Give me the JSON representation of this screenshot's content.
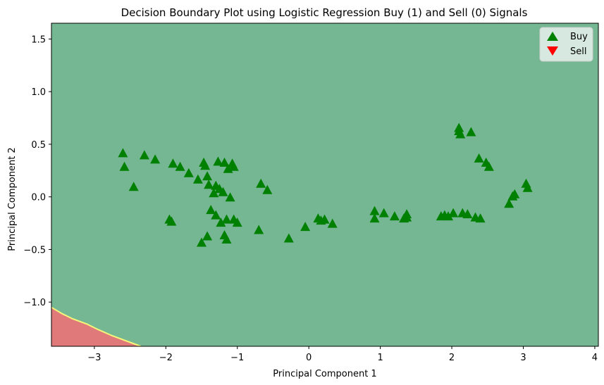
{
  "chart_data": {
    "type": "scatter",
    "title": "Decision Boundary Plot using Logistic Regression Buy (1) and Sell (0) Signals",
    "xlabel": "Principal Component 1",
    "ylabel": "Principal Component 2",
    "xlim": [
      -3.6,
      4.05
    ],
    "ylim": [
      -1.42,
      1.65
    ],
    "xticks": [
      -3,
      -2,
      -1,
      0,
      1,
      2,
      3,
      4
    ],
    "xtick_labels": [
      "−3",
      "−2",
      "−1",
      "0",
      "1",
      "2",
      "3",
      "4"
    ],
    "yticks": [
      -1.0,
      -0.5,
      0.0,
      0.5,
      1.0,
      1.5
    ],
    "ytick_labels": [
      "−1.0",
      "−0.5",
      "0.0",
      "0.5",
      "1.0",
      "1.5"
    ],
    "grid": false,
    "legend_position": "top-right",
    "region_colors": {
      "buy": "#74b792",
      "sell": "#e07a7a",
      "boundary": "#f5f57a"
    },
    "sell_region_boundary": [
      [
        -3.6,
        -1.05
      ],
      [
        -3.45,
        -1.11
      ],
      [
        -3.3,
        -1.16
      ],
      [
        -3.1,
        -1.21
      ],
      [
        -2.95,
        -1.26
      ],
      [
        -2.75,
        -1.32
      ],
      [
        -2.55,
        -1.37
      ],
      [
        -2.35,
        -1.42
      ]
    ],
    "series": [
      {
        "name": "Buy",
        "marker": "triangle-up",
        "color": "#008000",
        "points": [
          [
            -2.6,
            0.41
          ],
          [
            -2.58,
            0.28
          ],
          [
            -2.45,
            0.09
          ],
          [
            -2.3,
            0.39
          ],
          [
            -2.15,
            0.35
          ],
          [
            -1.95,
            -0.22
          ],
          [
            -1.92,
            -0.24
          ],
          [
            -1.9,
            0.31
          ],
          [
            -1.8,
            0.28
          ],
          [
            -1.68,
            0.22
          ],
          [
            -1.55,
            0.16
          ],
          [
            -1.47,
            0.32
          ],
          [
            -1.45,
            0.29
          ],
          [
            -1.42,
            0.19
          ],
          [
            -1.4,
            0.11
          ],
          [
            -1.37,
            -0.13
          ],
          [
            -1.33,
            0.03
          ],
          [
            -1.3,
            0.1
          ],
          [
            -1.3,
            -0.18
          ],
          [
            -1.27,
            0.33
          ],
          [
            -1.25,
            0.07
          ],
          [
            -1.23,
            -0.25
          ],
          [
            -1.2,
            0.04
          ],
          [
            -1.18,
            0.32
          ],
          [
            -1.15,
            -0.22
          ],
          [
            -1.13,
            0.26
          ],
          [
            -1.1,
            -0.01
          ],
          [
            -1.07,
            0.31
          ],
          [
            -1.05,
            0.28
          ],
          [
            -1.05,
            -0.22
          ],
          [
            -1.0,
            -0.25
          ],
          [
            -1.5,
            -0.44
          ],
          [
            -1.42,
            -0.38
          ],
          [
            -1.18,
            -0.37
          ],
          [
            -1.15,
            -0.41
          ],
          [
            -0.7,
            -0.32
          ],
          [
            -0.67,
            0.12
          ],
          [
            -0.58,
            0.06
          ],
          [
            -0.28,
            -0.4
          ],
          [
            -0.05,
            -0.29
          ],
          [
            0.13,
            -0.21
          ],
          [
            0.17,
            -0.23
          ],
          [
            0.22,
            -0.22
          ],
          [
            0.33,
            -0.26
          ],
          [
            0.92,
            -0.14
          ],
          [
            0.92,
            -0.21
          ],
          [
            1.05,
            -0.16
          ],
          [
            1.2,
            -0.19
          ],
          [
            1.33,
            -0.21
          ],
          [
            1.37,
            -0.17
          ],
          [
            1.37,
            -0.2
          ],
          [
            1.85,
            -0.19
          ],
          [
            1.9,
            -0.18
          ],
          [
            1.95,
            -0.19
          ],
          [
            2.02,
            -0.16
          ],
          [
            2.15,
            -0.16
          ],
          [
            2.22,
            -0.17
          ],
          [
            2.33,
            -0.2
          ],
          [
            2.4,
            -0.21
          ],
          [
            2.1,
            0.65
          ],
          [
            2.1,
            0.62
          ],
          [
            2.12,
            0.59
          ],
          [
            2.27,
            0.61
          ],
          [
            2.38,
            0.36
          ],
          [
            2.48,
            0.32
          ],
          [
            2.52,
            0.28
          ],
          [
            2.8,
            -0.07
          ],
          [
            2.85,
            0.0
          ],
          [
            2.88,
            0.02
          ],
          [
            3.04,
            0.12
          ],
          [
            3.06,
            0.08
          ]
        ]
      },
      {
        "name": "Sell",
        "marker": "triangle-down",
        "color": "#ff0000",
        "points": []
      }
    ]
  }
}
